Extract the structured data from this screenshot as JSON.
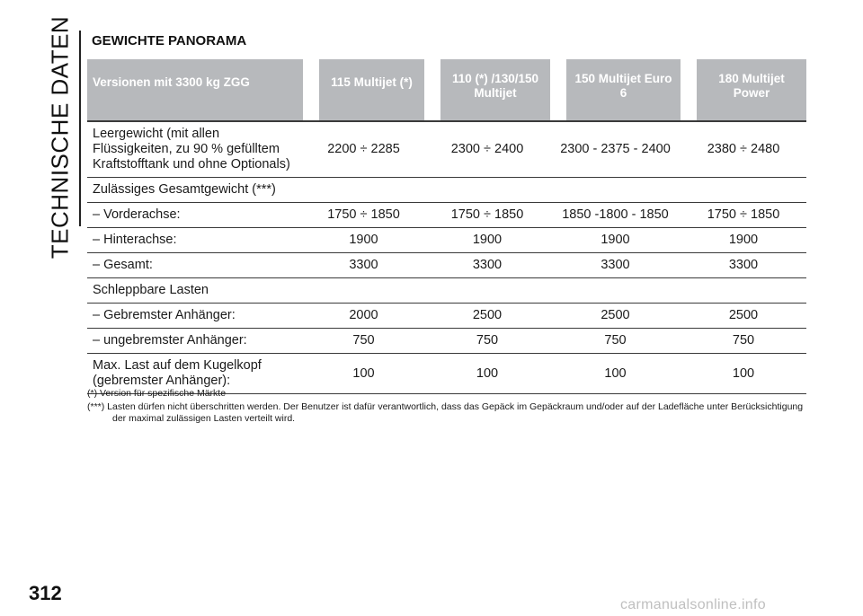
{
  "sidebar": {
    "section_label": "TECHNISCHE DATEN",
    "page_number": "312"
  },
  "section_title": "GEWICHTE PANORAMA",
  "table": {
    "headers": [
      "Versionen mit 3300 kg ZGG",
      "115 Multijet (*)",
      "110 (*) /130/150 Multijet",
      "150 Multijet Euro 6",
      "180 Multijet Power"
    ],
    "rows": [
      {
        "label": "Leergewicht (mit allen Flüssigkeiten, zu 90 % gefülltem Kraftstofftank und ohne Optionals)",
        "values": [
          "2200 ÷ 2285",
          "2300 ÷ 2400",
          "2300 - 2375 - 2400",
          "2380 ÷ 2480"
        ]
      },
      {
        "label": "Zulässiges Gesamtgewicht (***)",
        "values": [
          "",
          "",
          "",
          ""
        ]
      },
      {
        "label": "– Vorderachse:",
        "values": [
          "1750 ÷ 1850",
          "1750 ÷ 1850",
          "1850 -1800 - 1850",
          "1750 ÷ 1850"
        ]
      },
      {
        "label": "– Hinterachse:",
        "values": [
          "1900",
          "1900",
          "1900",
          "1900"
        ]
      },
      {
        "label": "– Gesamt:",
        "values": [
          "3300",
          "3300",
          "3300",
          "3300"
        ]
      },
      {
        "label": "Schleppbare Lasten",
        "values": [
          "",
          "",
          "",
          ""
        ]
      },
      {
        "label": "– Gebremster Anhänger:",
        "values": [
          "2000",
          "2500",
          "2500",
          "2500"
        ]
      },
      {
        "label": "– ungebremster Anhänger:",
        "values": [
          "750",
          "750",
          "750",
          "750"
        ]
      },
      {
        "label": "Max. Last auf dem Kugelkopf (gebremster Anhänger):",
        "values": [
          "100",
          "100",
          "100",
          "100"
        ]
      }
    ]
  },
  "notes": [
    "(*) Version für spezifische Märkte",
    "(***) Lasten dürfen nicht überschritten werden. Der Benutzer ist dafür verantwortlich, dass das Gepäck im Gepäckraum und/oder auf der Ladefläche unter Berücksichtigung der maximal zulässigen Lasten verteilt wird."
  ],
  "watermark": "carmanualsonline.info"
}
